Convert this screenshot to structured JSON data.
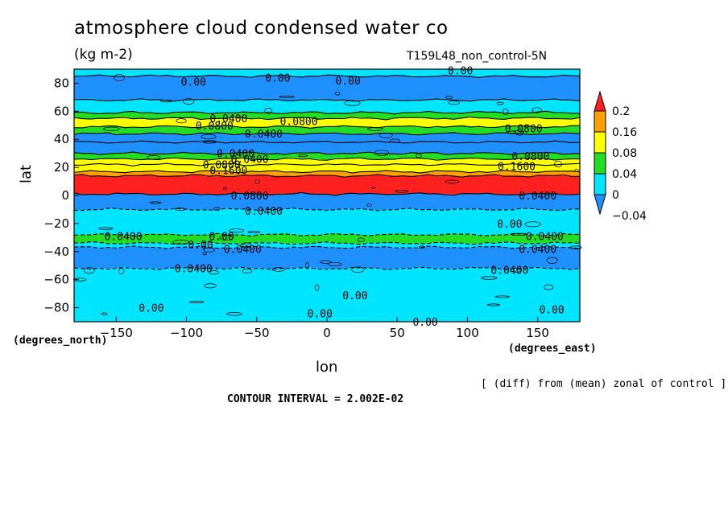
{
  "chart_data": {
    "type": "heatmap",
    "title": "atmosphere cloud condensed water co",
    "subtitle": "(kg m-2)",
    "run_label": "T159L48_non_control-5N",
    "xlabel": "lon",
    "ylabel": "lat",
    "x_units": "(degrees_east)",
    "y_units": "(degrees_north)",
    "note": "[ (diff) from (mean) zonal of control ]",
    "contour_interval": "CONTOUR INTERVAL = 2.002E-02",
    "xlim": [
      -180,
      180
    ],
    "ylim": [
      -90,
      90
    ],
    "x_ticks": [
      -150,
      -100,
      -50,
      0,
      50,
      100,
      150
    ],
    "y_ticks": [
      -80,
      -60,
      -40,
      -20,
      0,
      20,
      40,
      60,
      80
    ],
    "colorbar": {
      "levels": [
        -0.04,
        0,
        0.04,
        0.08,
        0.16,
        0.2
      ],
      "labels": [
        "-0.04",
        "0",
        "0.04",
        "0.08",
        "0.16",
        "0.2"
      ],
      "colors": [
        "#1e90ff",
        "#00e5ff",
        "#22dd22",
        "#ffff00",
        "#ffa000",
        "#ff2020"
      ]
    },
    "bands": [
      {
        "lat": [
          85,
          90
        ],
        "color": "#00e5ff"
      },
      {
        "lat": [
          68,
          85
        ],
        "color": "#1e90ff"
      },
      {
        "lat": [
          59,
          68
        ],
        "color": "#00e5ff"
      },
      {
        "lat": [
          55,
          59
        ],
        "color": "#22dd22"
      },
      {
        "lat": [
          49,
          55
        ],
        "color": "#ffff00"
      },
      {
        "lat": [
          44,
          49
        ],
        "color": "#22dd22"
      },
      {
        "lat": [
          38,
          44
        ],
        "color": "#1e90ff"
      },
      {
        "lat": [
          30,
          38
        ],
        "color": "#1e90ff"
      },
      {
        "lat": [
          26,
          30
        ],
        "color": "#22dd22"
      },
      {
        "lat": [
          22,
          26
        ],
        "color": "#ffff00"
      },
      {
        "lat": [
          17,
          22
        ],
        "color": "#ffff00"
      },
      {
        "lat": [
          14,
          17
        ],
        "color": "#ffa000"
      },
      {
        "lat": [
          1,
          14
        ],
        "color": "#ff2020"
      },
      {
        "lat": [
          -10,
          1
        ],
        "color": "#1e90ff"
      },
      {
        "lat": [
          -28,
          -10
        ],
        "color": "#00e5ff"
      },
      {
        "lat": [
          -34,
          -28
        ],
        "color": "#22dd22"
      },
      {
        "lat": [
          -37,
          -34
        ],
        "color": "#00e5ff"
      },
      {
        "lat": [
          -52,
          -37
        ],
        "color": "#1e90ff"
      },
      {
        "lat": [
          -90,
          -52
        ],
        "color": "#00e5ff"
      }
    ],
    "contour_labels": [
      {
        "text": "0.00",
        "lon": -95,
        "lat": 81
      },
      {
        "text": "0.00",
        "lon": -35,
        "lat": 84
      },
      {
        "text": "0.00",
        "lon": 15,
        "lat": 82
      },
      {
        "text": "0.00",
        "lon": 95,
        "lat": 89
      },
      {
        "text": "0.0400",
        "lon": -70,
        "lat": 55
      },
      {
        "text": "0.0800",
        "lon": -80,
        "lat": 50
      },
      {
        "text": "0.0800",
        "lon": -20,
        "lat": 53
      },
      {
        "text": "0.0400",
        "lon": -45,
        "lat": 44
      },
      {
        "text": "0.0800",
        "lon": 140,
        "lat": 48
      },
      {
        "text": "0.0400",
        "lon": -65,
        "lat": 30
      },
      {
        "text": "0.0400",
        "lon": -55,
        "lat": 26
      },
      {
        "text": "0.0800",
        "lon": -75,
        "lat": 22
      },
      {
        "text": "0.1600",
        "lon": -70,
        "lat": 18
      },
      {
        "text": "0.0800",
        "lon": 145,
        "lat": 28
      },
      {
        "text": "0.1600",
        "lon": 135,
        "lat": 21
      },
      {
        "text": "0.0800",
        "lon": -55,
        "lat": 0
      },
      {
        "text": "0.0400",
        "lon": 150,
        "lat": 0
      },
      {
        "text": "0.0400",
        "lon": -45,
        "lat": -11
      },
      {
        "text": "0.00",
        "lon": 130,
        "lat": -20
      },
      {
        "text": "0.0400",
        "lon": -145,
        "lat": -29
      },
      {
        "text": "0.00",
        "lon": -75,
        "lat": -29
      },
      {
        "text": "0.0400",
        "lon": 155,
        "lat": -29
      },
      {
        "text": "0.00",
        "lon": -90,
        "lat": -35
      },
      {
        "text": "0.0400",
        "lon": -60,
        "lat": -38
      },
      {
        "text": "0.0400",
        "lon": 150,
        "lat": -38
      },
      {
        "text": "0.0400",
        "lon": -95,
        "lat": -52
      },
      {
        "text": "0.0400",
        "lon": 130,
        "lat": -53
      },
      {
        "text": "0.00",
        "lon": 20,
        "lat": -71
      },
      {
        "text": "0.00",
        "lon": -125,
        "lat": -80
      },
      {
        "text": "0.00",
        "lon": -5,
        "lat": -84
      },
      {
        "text": "0.00",
        "lon": 160,
        "lat": -81
      },
      {
        "text": "0.00",
        "lon": 70,
        "lat": -90
      }
    ]
  }
}
